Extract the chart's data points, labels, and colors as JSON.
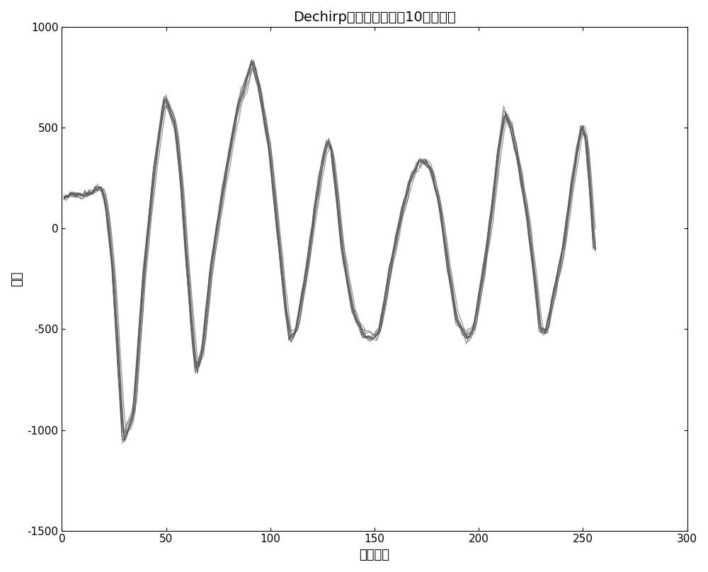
{
  "title": "Dechirp后的中频信号（10个脉冲）",
  "xlabel": "采样点数",
  "ylabel": "幅値",
  "xlim": [
    0,
    300
  ],
  "ylim": [
    -1500,
    1000
  ],
  "xticks": [
    0,
    50,
    100,
    150,
    200,
    250,
    300
  ],
  "yticks": [
    -1500,
    -1000,
    -500,
    0,
    500,
    1000
  ],
  "n_pulses": 10,
  "n_samples": 256,
  "line_color": "#555555",
  "line_alpha": 0.6,
  "line_width": 0.9,
  "bg_color": "#ffffff",
  "title_fontsize": 14,
  "label_fontsize": 13,
  "tick_fontsize": 11
}
